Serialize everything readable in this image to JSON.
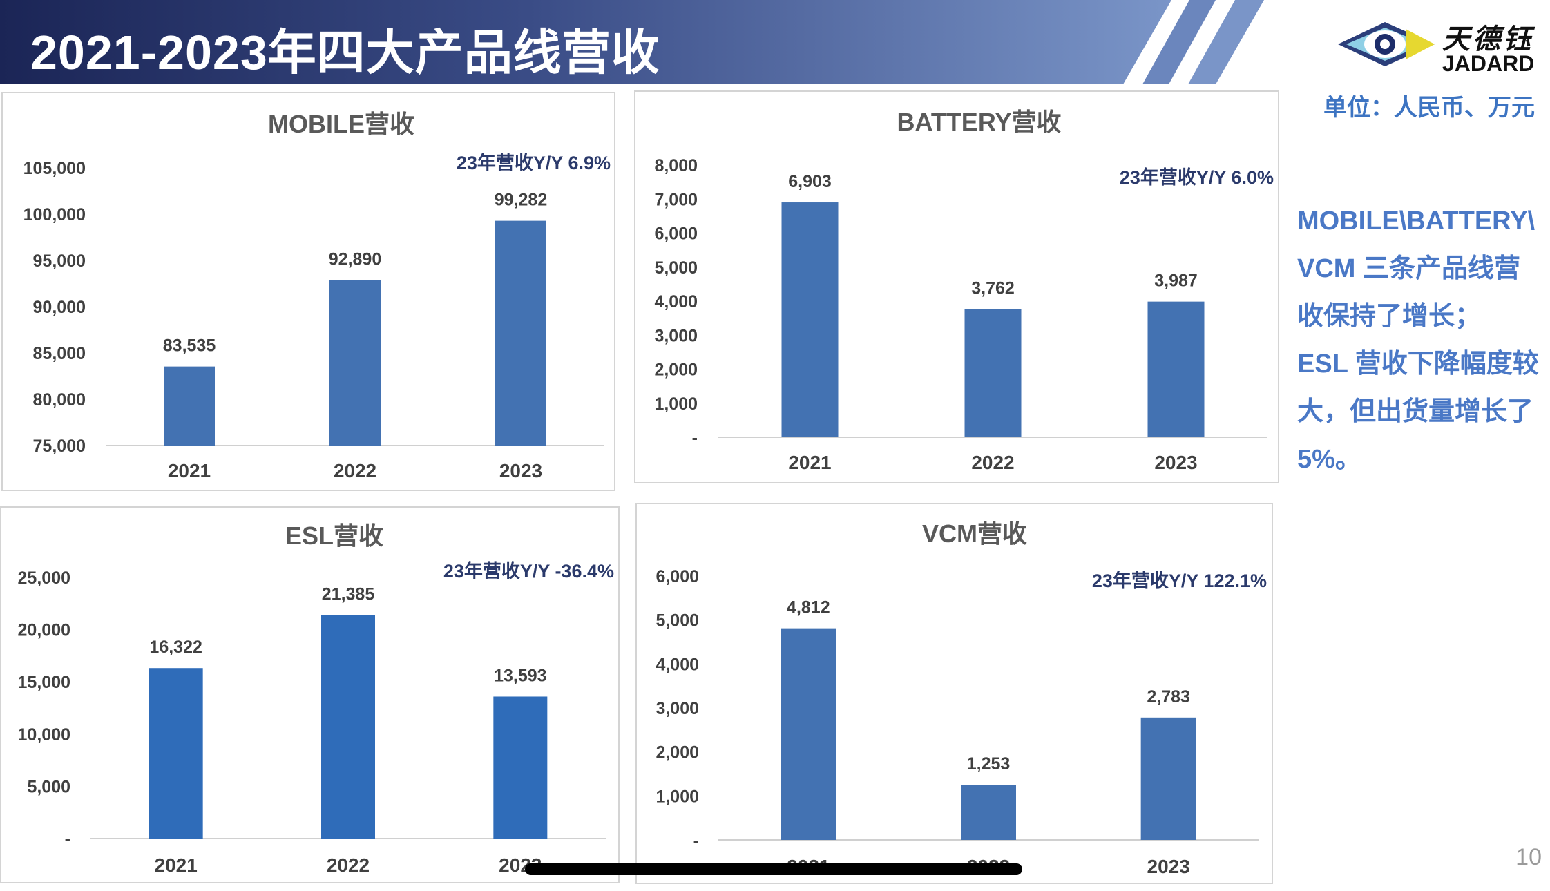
{
  "header": {
    "title": "2021-2023年四大产品线营收",
    "logo_cn": "天德钰",
    "logo_en": "JADARD"
  },
  "unit_label": "单位：人民币、万元",
  "side_note": [
    "MOBILE\\BATTERY\\",
    "VCM 三条产品线营",
    "收保持了增长；",
    "ESL 营收下降幅度较",
    "大，但出货量增长了",
    "5%。"
  ],
  "page_number": "10",
  "colors": {
    "header_dark": "#1e2a5e",
    "header_light": "#7a95c8",
    "bar": "#4372b2",
    "bar_esl": "#2f6cb9",
    "yoy_text": "#2b3a6b"
  },
  "chart_data": [
    {
      "type": "bar",
      "title": "MOBILE营收",
      "yoy": "23年营收Y/Y 6.9%",
      "categories": [
        "2021",
        "2022",
        "2023"
      ],
      "values": [
        83535,
        92890,
        99282
      ],
      "value_labels": [
        "83,535",
        "92,890",
        "99,282"
      ],
      "ylim": [
        75000,
        105000
      ],
      "yticks": [
        75000,
        80000,
        85000,
        90000,
        95000,
        100000,
        105000
      ],
      "ytick_labels": [
        "75,000",
        "80,000",
        "85,000",
        "90,000",
        "95,000",
        "100,000",
        "105,000"
      ],
      "grid": false,
      "legend": "none"
    },
    {
      "type": "bar",
      "title": "BATTERY营收",
      "yoy": "23年营收Y/Y 6.0%",
      "categories": [
        "2021",
        "2022",
        "2023"
      ],
      "values": [
        6903,
        3762,
        3987
      ],
      "value_labels": [
        "6,903",
        "3,762",
        "3,987"
      ],
      "ylim": [
        0,
        8000
      ],
      "yticks": [
        0,
        1000,
        2000,
        3000,
        4000,
        5000,
        6000,
        7000,
        8000
      ],
      "ytick_labels": [
        "-",
        "1,000",
        "2,000",
        "3,000",
        "4,000",
        "5,000",
        "6,000",
        "7,000",
        "8,000"
      ],
      "grid": false,
      "legend": "none"
    },
    {
      "type": "bar",
      "title": "ESL营收",
      "yoy": "23年营收Y/Y -36.4%",
      "categories": [
        "2021",
        "2022",
        "2023"
      ],
      "values": [
        16322,
        21385,
        13593
      ],
      "value_labels": [
        "16,322",
        "21,385",
        "13,593"
      ],
      "ylim": [
        0,
        25000
      ],
      "yticks": [
        0,
        5000,
        10000,
        15000,
        20000,
        25000
      ],
      "ytick_labels": [
        "-",
        "5,000",
        "10,000",
        "15,000",
        "20,000",
        "25,000"
      ],
      "grid": false,
      "legend": "none"
    },
    {
      "type": "bar",
      "title": "VCM营收",
      "yoy": "23年营收Y/Y 122.1%",
      "categories": [
        "2021",
        "2022",
        "2023"
      ],
      "values": [
        4812,
        1253,
        2783
      ],
      "value_labels": [
        "4,812",
        "1,253",
        "2,783"
      ],
      "ylim": [
        0,
        6000
      ],
      "yticks": [
        0,
        1000,
        2000,
        3000,
        4000,
        5000,
        6000
      ],
      "ytick_labels": [
        "-",
        "1,000",
        "2,000",
        "3,000",
        "4,000",
        "5,000",
        "6,000"
      ],
      "grid": false,
      "legend": "none"
    }
  ]
}
